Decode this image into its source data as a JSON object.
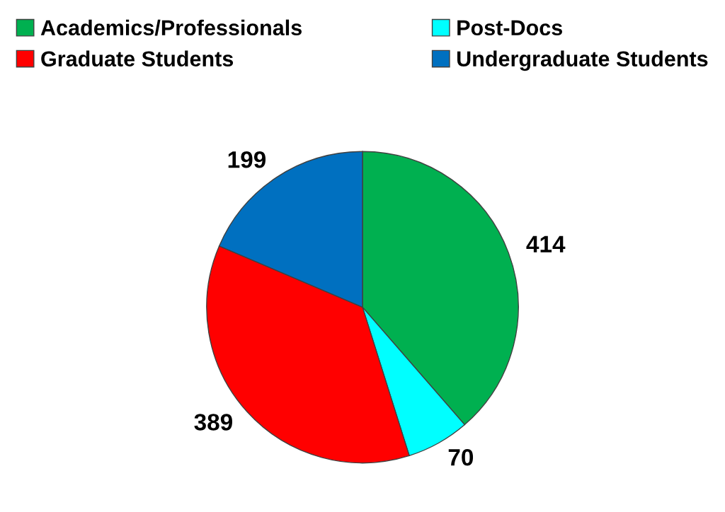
{
  "chart_data": {
    "type": "pie",
    "categories": [
      "Academics/Professionals",
      "Post-Docs",
      "Graduate Students",
      "Undergraduate Students"
    ],
    "values": [
      414,
      70,
      389,
      199
    ],
    "colors": [
      "#00b050",
      "#00ffff",
      "#ff0000",
      "#0070c0"
    ],
    "data_labels": true,
    "legend": "top"
  }
}
